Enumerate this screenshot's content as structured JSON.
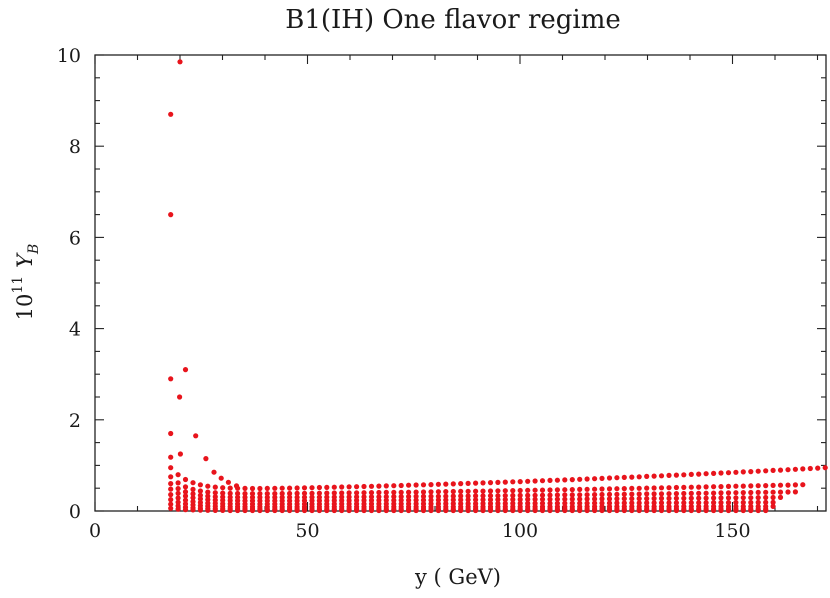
{
  "chart_data": {
    "type": "scatter",
    "title": "B1(IH) One flavor regime",
    "xlabel": "y ( GeV)",
    "ylabel_base": "10",
    "ylabel_exp": "11",
    "ylabel_sym": "Y",
    "ylabel_sub": "B",
    "xlim": [
      0,
      172
    ],
    "ylim": [
      0,
      10
    ],
    "x_ticks": [
      0,
      50,
      100,
      150
    ],
    "y_ticks": [
      0,
      2,
      4,
      6,
      8,
      10
    ],
    "grid": false,
    "marker_color": "#e8141c",
    "points_isolated": [
      [
        20.0,
        9.85
      ],
      [
        17.8,
        8.7
      ],
      [
        17.8,
        6.5
      ],
      [
        17.8,
        2.9
      ],
      [
        21.3,
        3.1
      ],
      [
        19.9,
        2.5
      ],
      [
        23.7,
        1.65
      ],
      [
        17.8,
        1.7
      ],
      [
        26.1,
        1.15
      ],
      [
        20.1,
        1.25
      ],
      [
        17.8,
        1.18
      ],
      [
        28.0,
        0.85
      ],
      [
        29.7,
        0.72
      ],
      [
        31.4,
        0.63
      ],
      [
        33.3,
        0.55
      ]
    ],
    "band_series": [
      {
        "x_start": 17.8,
        "x_end": 172,
        "step": 1.75,
        "y_start": 0.95,
        "y_min": 0.47,
        "y_end": 0.95,
        "decay": 4.5
      },
      {
        "x_start": 17.8,
        "x_end": 168,
        "step": 1.75,
        "y_start": 0.75,
        "y_min": 0.37,
        "y_end": 0.58,
        "decay": 4.0
      },
      {
        "x_start": 17.8,
        "x_end": 165,
        "step": 1.75,
        "y_start": 0.6,
        "y_min": 0.29,
        "y_end": 0.42,
        "decay": 4.0
      },
      {
        "x_start": 17.8,
        "x_end": 163,
        "step": 1.75,
        "y_start": 0.48,
        "y_min": 0.22,
        "y_end": 0.3,
        "decay": 4.0
      },
      {
        "x_start": 17.8,
        "x_end": 161,
        "step": 1.75,
        "y_start": 0.36,
        "y_min": 0.15,
        "y_end": 0.19,
        "decay": 4.0
      },
      {
        "x_start": 17.8,
        "x_end": 160,
        "step": 1.75,
        "y_start": 0.25,
        "y_min": 0.09,
        "y_end": 0.1,
        "decay": 4.0
      },
      {
        "x_start": 17.8,
        "x_end": 159,
        "step": 1.75,
        "y_start": 0.15,
        "y_min": 0.04,
        "y_end": 0.04,
        "decay": 4.0
      },
      {
        "x_start": 17.8,
        "x_end": 159,
        "step": 1.75,
        "y_start": 0.06,
        "y_min": 0.01,
        "y_end": 0.01,
        "decay": 4.0
      }
    ]
  }
}
